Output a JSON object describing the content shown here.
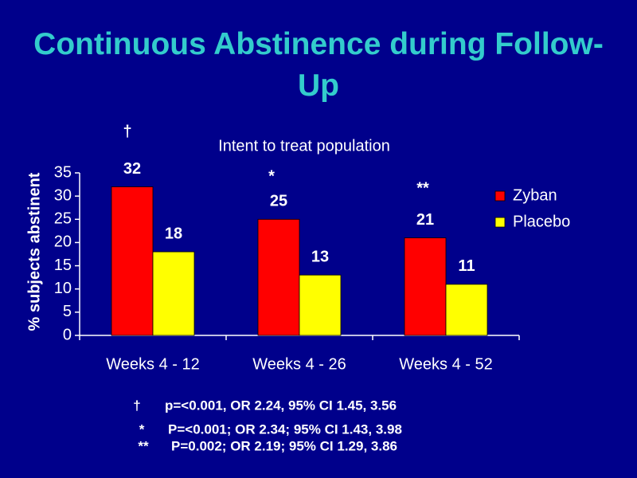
{
  "chart_data": {
    "type": "bar",
    "title": "Continuous Abstinence during Follow-Up",
    "subtitle": "Intent to treat population",
    "y_label": "% subjects abstinent",
    "categories": [
      "Weeks 4 - 12",
      "Weeks 4 - 26",
      "Weeks 4 - 52"
    ],
    "series": [
      {
        "name": "Zyban",
        "color": "#ff0000",
        "values": [
          32,
          25,
          21
        ]
      },
      {
        "name": "Placebo",
        "color": "#ffff00",
        "values": [
          18,
          13,
          11
        ]
      }
    ],
    "ylim": [
      0,
      35
    ],
    "yticks": [
      0,
      5,
      10,
      15,
      20,
      25,
      30,
      35
    ],
    "legend": "right",
    "annotations": [
      "†",
      "*",
      "**"
    ],
    "footnotes": [
      {
        "symbol": "†",
        "text": "p=<0.001, OR 2.24, 95% CI 1.45, 3.56"
      },
      {
        "symbol": "*",
        "text": "P=<0.001; OR 2.34; 95% CI 1.43, 3.98"
      },
      {
        "symbol": "**",
        "text": "P=0.002; OR 2.19; 95% CI 1.29, 3.86"
      }
    ]
  }
}
